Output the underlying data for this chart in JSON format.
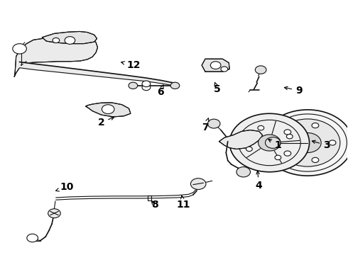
{
  "background_color": "#ffffff",
  "line_color": "#111111",
  "label_color": "#000000",
  "label_fontsize": 10,
  "fig_width": 4.9,
  "fig_height": 3.6,
  "dpi": 100,
  "labels": {
    "1": [
      0.8,
      0.43,
      0.765,
      0.46
    ],
    "2": [
      0.29,
      0.52,
      0.335,
      0.545
    ],
    "3": [
      0.94,
      0.43,
      0.89,
      0.45
    ],
    "4": [
      0.745,
      0.27,
      0.74,
      0.34
    ],
    "5": [
      0.625,
      0.65,
      0.617,
      0.68
    ],
    "6": [
      0.46,
      0.64,
      0.47,
      0.67
    ],
    "7": [
      0.59,
      0.5,
      0.6,
      0.54
    ],
    "8": [
      0.445,
      0.195,
      0.43,
      0.22
    ],
    "9": [
      0.86,
      0.645,
      0.81,
      0.66
    ],
    "10": [
      0.192,
      0.265,
      0.157,
      0.25
    ],
    "11": [
      0.527,
      0.195,
      0.522,
      0.235
    ],
    "12": [
      0.383,
      0.745,
      0.34,
      0.76
    ]
  }
}
